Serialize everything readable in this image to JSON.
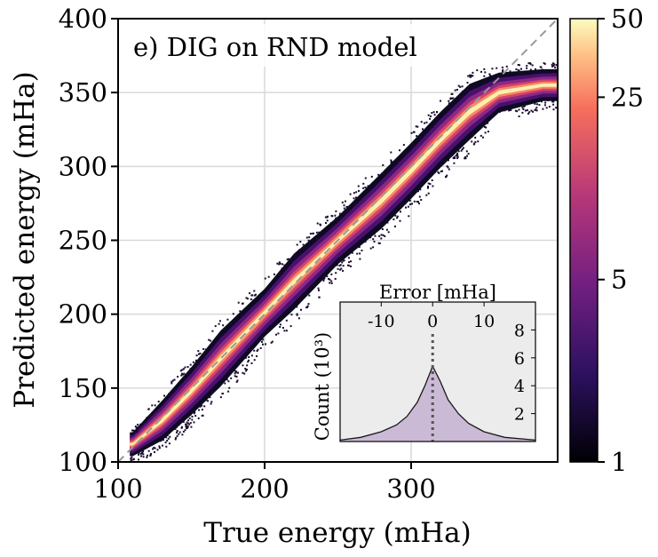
{
  "chart_data": {
    "type": "heatmap",
    "title": "e) DIG on RND model",
    "xlabel": "True energy (mHa)",
    "ylabel": "Predicted energy (mHa)",
    "xlim": [
      100,
      400
    ],
    "ylim": [
      100,
      400
    ],
    "xticks": [
      "100",
      "200",
      "300"
    ],
    "yticks": [
      "100",
      "150",
      "200",
      "250",
      "300",
      "350",
      "400"
    ],
    "grid": true,
    "reference_line": "y = x (dashed)",
    "density_ridge": {
      "x": [
        110,
        130,
        150,
        170,
        200,
        220,
        250,
        280,
        300,
        320,
        340,
        360,
        390
      ],
      "y": [
        112,
        128,
        148,
        170,
        201,
        222,
        250,
        277,
        297,
        318,
        337,
        350,
        355
      ],
      "width_mha": [
        6,
        10,
        12,
        14,
        12,
        14,
        12,
        14,
        14,
        14,
        14,
        10,
        8
      ]
    },
    "colorbar": {
      "scale": "log",
      "range": [
        1,
        50
      ],
      "ticks": [
        "1",
        "5",
        "25",
        "50"
      ],
      "colormap": [
        "#000004",
        "#3b0f70",
        "#8c2981",
        "#de4968",
        "#fe9f6d",
        "#fcfdbf"
      ]
    },
    "inset": {
      "type": "area",
      "xlabel": "Error [mHa]",
      "ylabel": "Count (10³)",
      "xticks": [
        "-10",
        "0",
        "10"
      ],
      "yticks": [
        "2",
        "4",
        "6",
        "8"
      ],
      "xlim": [
        -18,
        20
      ],
      "ylim": [
        0,
        10
      ],
      "x": [
        -18,
        -14,
        -10,
        -7,
        -5,
        -3,
        -1.5,
        0,
        1.5,
        3,
        5,
        7,
        10,
        14,
        20
      ],
      "y": [
        0.1,
        0.3,
        0.7,
        1.2,
        1.8,
        2.8,
        4.0,
        5.4,
        4.3,
        3.0,
        2.0,
        1.3,
        0.7,
        0.3,
        0.1
      ],
      "fill": "#cbbad6",
      "zero_line": "dotted"
    }
  }
}
